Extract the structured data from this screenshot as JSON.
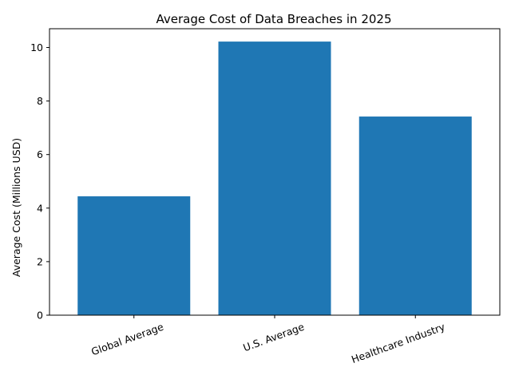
{
  "chart_data": {
    "type": "bar",
    "title": "Average Cost of Data Breaches in 2025",
    "xlabel": "",
    "ylabel": "Average Cost (Millions USD)",
    "categories": [
      "Global Average",
      "U.S. Average",
      "Healthcare Industry"
    ],
    "values": [
      4.44,
      10.22,
      7.42
    ],
    "ylim": [
      0,
      10.7
    ],
    "yticks": [
      "0",
      "2",
      "4",
      "6",
      "8",
      "10"
    ],
    "xtick_rotation_deg": -20,
    "grid": false,
    "legend": "none",
    "bar_color": "#1f77b4"
  }
}
